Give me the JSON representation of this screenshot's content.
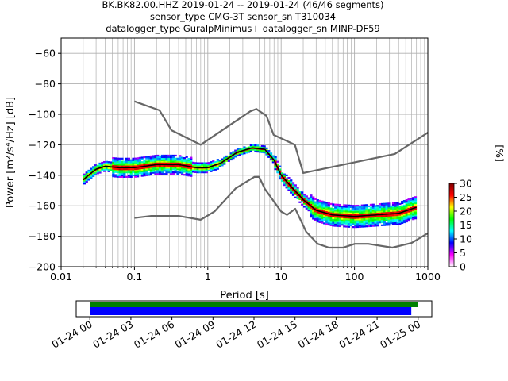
{
  "chart_data": {
    "type": "heatmap",
    "title_lines": [
      "BK.BK82.00.HHZ   2019-01-24 -- 2019-01-24  (46/46 segments)",
      "sensor_type CMG-3T sensor_sn T310034",
      "datalogger_type GuralpMinimus+ datalogger_sn MINP-DF59"
    ],
    "xlabel": "Period [s]",
    "ylabel": "Power [m²/s⁴/Hz] [dB]",
    "x_scale": "log",
    "xlim": [
      0.01,
      1000
    ],
    "ylim": [
      -200,
      -50
    ],
    "x_ticks": [
      {
        "value": 0.01,
        "label": "0.01"
      },
      {
        "value": 0.1,
        "label": "0.1"
      },
      {
        "value": 1,
        "label": "1"
      },
      {
        "value": 10,
        "label": "10"
      },
      {
        "value": 100,
        "label": "100"
      },
      {
        "value": 1000,
        "label": "1000"
      }
    ],
    "y_ticks": [
      {
        "value": -60,
        "label": "−60"
      },
      {
        "value": -80,
        "label": "−80"
      },
      {
        "value": -100,
        "label": "−100"
      },
      {
        "value": -120,
        "label": "−120"
      },
      {
        "value": -140,
        "label": "−140"
      },
      {
        "value": -160,
        "label": "−160"
      },
      {
        "value": -180,
        "label": "−180"
      },
      {
        "value": -200,
        "label": "−200"
      }
    ],
    "grid": true,
    "noise_models": {
      "color": "#666666",
      "high": [
        [
          0.1,
          -91.5
        ],
        [
          0.22,
          -97.4
        ],
        [
          0.32,
          -110.5
        ],
        [
          0.8,
          -120
        ],
        [
          3.8,
          -98
        ],
        [
          4.6,
          -96.5
        ],
        [
          6.3,
          -101
        ],
        [
          7.9,
          -113.5
        ],
        [
          15.4,
          -120
        ],
        [
          20,
          -138.5
        ],
        [
          354.8,
          -126
        ],
        [
          1000,
          -112
        ]
      ],
      "low": [
        [
          0.1,
          -168
        ],
        [
          0.17,
          -166.7
        ],
        [
          0.4,
          -166.7
        ],
        [
          0.8,
          -169.2
        ],
        [
          1.24,
          -163.7
        ],
        [
          2.4,
          -148.6
        ],
        [
          4.3,
          -141.1
        ],
        [
          5,
          -141
        ],
        [
          6,
          -149
        ],
        [
          10,
          -163.8
        ],
        [
          12,
          -166
        ],
        [
          15.6,
          -162
        ],
        [
          21.9,
          -177
        ],
        [
          31.6,
          -185
        ],
        [
          45,
          -187.5
        ],
        [
          70,
          -187.5
        ],
        [
          101,
          -185
        ],
        [
          154,
          -185
        ],
        [
          328,
          -187.5
        ],
        [
          600,
          -184.4
        ],
        [
          1000,
          -178
        ]
      ]
    },
    "mean_curve": {
      "color": "#000000",
      "points": [
        [
          0.02,
          -143
        ],
        [
          0.025,
          -139
        ],
        [
          0.03,
          -136
        ],
        [
          0.04,
          -134
        ],
        [
          0.06,
          -135
        ],
        [
          0.1,
          -135
        ],
        [
          0.2,
          -133
        ],
        [
          0.4,
          -133
        ],
        [
          0.7,
          -135
        ],
        [
          1,
          -135
        ],
        [
          1.5,
          -132
        ],
        [
          2.5,
          -125
        ],
        [
          4,
          -122
        ],
        [
          6,
          -123
        ],
        [
          8,
          -130
        ],
        [
          10,
          -140
        ],
        [
          14,
          -148
        ],
        [
          20,
          -156
        ],
        [
          30,
          -163
        ],
        [
          50,
          -166
        ],
        [
          100,
          -167
        ],
        [
          200,
          -166
        ],
        [
          400,
          -165
        ],
        [
          700,
          -161
        ]
      ]
    },
    "colorbar": {
      "label": "[%]",
      "min": 0,
      "max": 30,
      "ticks": [
        "0",
        "5",
        "10",
        "15",
        "20",
        "25",
        "30"
      ],
      "colors": [
        "#ffffff",
        "#ff00ff",
        "#0000ff",
        "#00ffff",
        "#00ff00",
        "#ffff00",
        "#ff0000",
        "#800000"
      ]
    },
    "timeline": {
      "ticks": [
        "01-24 00",
        "01-24 03",
        "01-24 06",
        "01-24 09",
        "01-24 12",
        "01-24 15",
        "01-24 18",
        "01-24 21",
        "01-25 00"
      ],
      "hours_span": [
        -1,
        25
      ],
      "data_bar": {
        "start": 0,
        "end": 24,
        "color": "#008000"
      },
      "psd_bar": {
        "start": 0,
        "end": 23.5,
        "color": "#0000ff"
      }
    }
  }
}
